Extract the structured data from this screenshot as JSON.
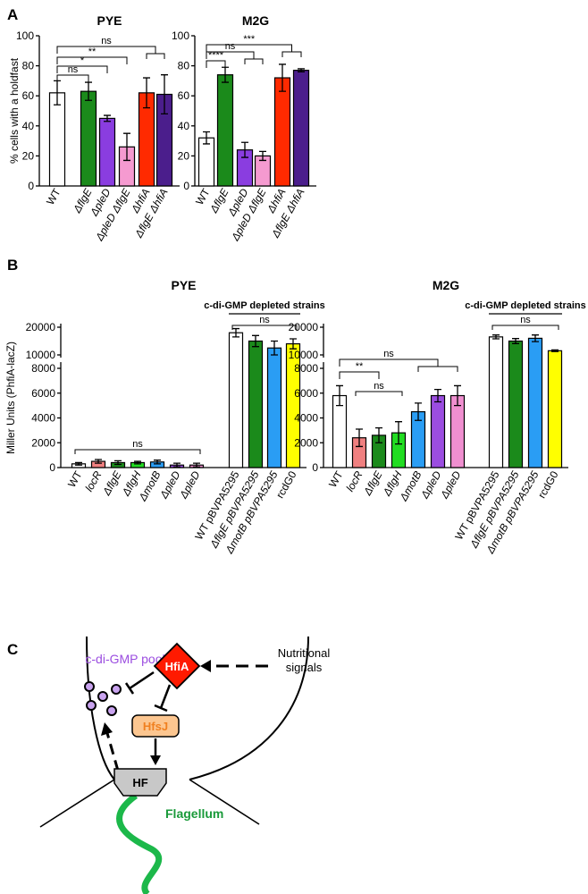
{
  "panel_labels": [
    "A",
    "B",
    "C"
  ],
  "chart_data": [
    {
      "type": "bar",
      "title": "PYE",
      "y_label": "% cells with a holdfast",
      "categories": [
        "WT",
        "ΔflgE",
        "ΔpleD",
        "ΔpleD ΔflgE",
        "ΔhfiA",
        "ΔflgE ΔhfiA"
      ],
      "values": [
        62,
        63,
        45,
        26,
        62,
        61
      ],
      "errors": [
        8,
        6,
        2,
        9,
        10,
        13
      ],
      "colors": [
        "#ffffff",
        "#1b8a1b",
        "#8a3de0",
        "#f59ad0",
        "#ff2a00",
        "#4b1e8c"
      ],
      "ylim": [
        0,
        100
      ],
      "yticks": [
        0,
        20,
        40,
        60,
        80,
        100
      ],
      "annotations": [
        "ns",
        "*",
        "**",
        "ns"
      ]
    },
    {
      "type": "bar",
      "title": "M2G",
      "categories": [
        "WT",
        "ΔflgE",
        "ΔpleD",
        "ΔpleD ΔflgE",
        "ΔhfiA",
        "ΔflgE ΔhfiA"
      ],
      "values": [
        32,
        74,
        24,
        20,
        72,
        77
      ],
      "errors": [
        4,
        5,
        5,
        3,
        9,
        1
      ],
      "colors": [
        "#ffffff",
        "#1b8a1b",
        "#8a3de0",
        "#f59ad0",
        "#ff2a00",
        "#4b1e8c"
      ],
      "ylim": [
        0,
        100
      ],
      "yticks": [
        0,
        20,
        40,
        60,
        80,
        100
      ],
      "annotations": [
        "****",
        "ns",
        "***"
      ]
    },
    {
      "type": "bar",
      "title": "PYE",
      "y_label": "Miller Units (PhfiA-lacZ)",
      "group_label": "c-di-GMP depleted strains",
      "categories": [
        "WT",
        "locR",
        "ΔflgE",
        "ΔflgH",
        "ΔmotB",
        "ΔpleD",
        "ΔpleD",
        "WT pBVPA5295",
        "ΔflgE pBVPA5295",
        "ΔmotB pBVPA5295",
        "rcdG0"
      ],
      "values": [
        300,
        500,
        400,
        400,
        450,
        200,
        200,
        18000,
        15000,
        12500,
        14000
      ],
      "errors": [
        100,
        150,
        150,
        100,
        150,
        150,
        150,
        1500,
        2000,
        2500,
        1800
      ],
      "colors": [
        "#ffffff",
        "#f08080",
        "#1b8a1b",
        "#22dd22",
        "#2a9df4",
        "#9b4de0",
        "#f08fd0",
        "#ffffff",
        "#1b8a1b",
        "#2a9df4",
        "#ffff00"
      ],
      "ylim": [
        0,
        20000
      ],
      "y_break": [
        8500,
        10000
      ],
      "yticks": [
        0,
        2000,
        4000,
        6000,
        8000,
        10000,
        20000
      ],
      "annotations": [
        "ns",
        "ns"
      ]
    },
    {
      "type": "bar",
      "title": "M2G",
      "group_label": "c-di-GMP depleted strains",
      "categories": [
        "WT",
        "locR",
        "ΔflgE",
        "ΔflgH",
        "ΔmotB",
        "ΔpleD",
        "ΔpleD",
        "WT pBVPA5295",
        "ΔflgE pBVPA5295",
        "ΔmotB pBVPA5295",
        "rcdG0"
      ],
      "values": [
        5800,
        2400,
        2600,
        2800,
        4500,
        5800,
        5800,
        16500,
        15000,
        16000,
        11500
      ],
      "errors": [
        800,
        700,
        600,
        900,
        700,
        500,
        800,
        700,
        900,
        1200,
        300
      ],
      "colors": [
        "#ffffff",
        "#f08080",
        "#1b8a1b",
        "#22dd22",
        "#2a9df4",
        "#9b4de0",
        "#f08fd0",
        "#ffffff",
        "#1b8a1b",
        "#2a9df4",
        "#ffff00"
      ],
      "ylim": [
        0,
        20000
      ],
      "y_break": [
        8500,
        10000
      ],
      "yticks": [
        0,
        2000,
        4000,
        6000,
        8000,
        10000,
        20000
      ],
      "annotations": [
        "ns",
        "**",
        "ns",
        "ns"
      ]
    }
  ],
  "diagram": {
    "pool": "c-di-GMP pool",
    "hfia": "HfiA",
    "hfsj": "HfsJ",
    "hf": "HF",
    "flagellum": "Flagellum",
    "signals": [
      "Nutritional",
      "signals"
    ]
  }
}
